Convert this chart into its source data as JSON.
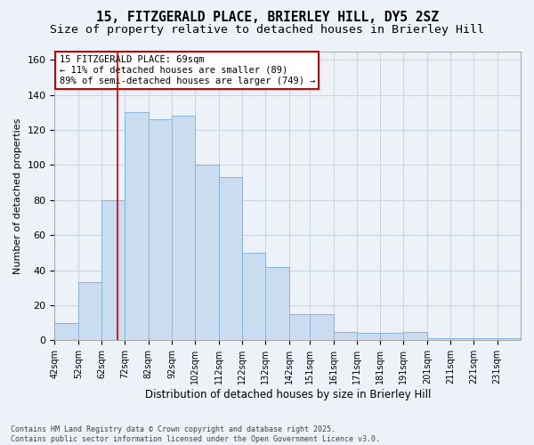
{
  "title_line1": "15, FITZGERALD PLACE, BRIERLEY HILL, DY5 2SZ",
  "title_line2": "Size of property relative to detached houses in Brierley Hill",
  "xlabel": "Distribution of detached houses by size in Brierley Hill",
  "ylabel": "Number of detached properties",
  "bar_values": [
    10,
    33,
    80,
    130,
    126,
    128,
    100,
    93,
    50,
    42,
    15,
    15,
    5,
    4,
    4,
    5,
    1,
    1,
    1,
    1
  ],
  "bin_edges": [
    42,
    52,
    62,
    72,
    82,
    92,
    102,
    112,
    122,
    132,
    142,
    151,
    161,
    171,
    181,
    191,
    201,
    211,
    221,
    231,
    241
  ],
  "bar_facecolor": "#c9dcf0",
  "bar_edgecolor": "#8ab4d8",
  "grid_color": "#ccd5e3",
  "bg_color": "#edf2f8",
  "property_size": 69,
  "property_line_color": "#cc0000",
  "annotation_text": "15 FITZGERALD PLACE: 69sqm\n← 11% of detached houses are smaller (89)\n89% of semi-detached houses are larger (749) →",
  "annotation_box_color": "#ffffff",
  "annotation_border_color": "#cc0000",
  "ylim": [
    0,
    165
  ],
  "yticks": [
    0,
    20,
    40,
    60,
    80,
    100,
    120,
    140,
    160
  ],
  "footer_text": "Contains HM Land Registry data © Crown copyright and database right 2025.\nContains public sector information licensed under the Open Government Licence v3.0.",
  "tick_label_fontsize": 7.0,
  "ylabel_fontsize": 8.0,
  "xlabel_fontsize": 8.5,
  "title_fontsize1": 10.5,
  "title_fontsize2": 9.5,
  "annotation_fontsize": 7.5
}
